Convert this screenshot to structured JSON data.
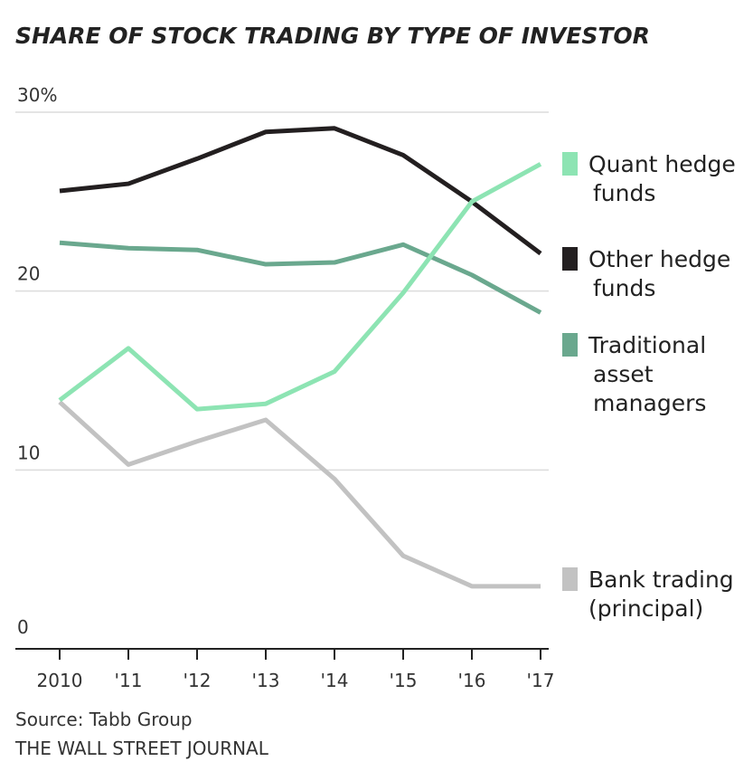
{
  "chart_data": {
    "type": "line",
    "title": "SHARE OF STOCK TRADING BY TYPE OF INVESTOR",
    "x": [
      "2010",
      "'11",
      "'12",
      "'13",
      "'14",
      "'15",
      "'16",
      "'17"
    ],
    "y_ticks": [
      "0",
      "10",
      "20",
      "30%"
    ],
    "ylim": [
      0,
      30
    ],
    "grid": true,
    "legend_placement": "right, labels beside line ends",
    "series": [
      {
        "name": "Quant hedge funds",
        "name_lines": [
          "Quant hedge",
          "funds"
        ],
        "color": "#8de4b3",
        "values": [
          13.9,
          16.8,
          13.4,
          13.7,
          15.5,
          19.9,
          25.0,
          27.1
        ]
      },
      {
        "name": "Other hedge funds",
        "name_lines": [
          "Other hedge",
          "funds"
        ],
        "color": "#231f20",
        "values": [
          25.6,
          26.0,
          27.4,
          28.9,
          29.1,
          27.6,
          25.0,
          22.1
        ]
      },
      {
        "name": "Traditional asset managers",
        "name_lines": [
          "Traditional",
          "asset",
          "managers"
        ],
        "color": "#6aa88e",
        "values": [
          22.7,
          22.4,
          22.3,
          21.5,
          21.6,
          22.6,
          20.9,
          18.8
        ]
      },
      {
        "name": "Bank trading (principal)",
        "name_lines": [
          "Bank trading",
          "(principal)"
        ],
        "color": "#c2c2c2",
        "values": [
          13.8,
          10.3,
          11.6,
          12.8,
          9.5,
          5.2,
          3.5,
          3.5
        ]
      }
    ],
    "source": "Source: Tabb Group",
    "publisher": "THE WALL STREET JOURNAL"
  }
}
